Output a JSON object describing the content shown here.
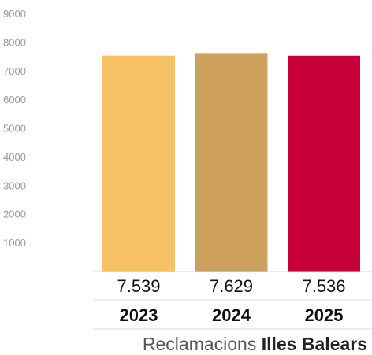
{
  "chart_data": {
    "type": "bar",
    "categories": [
      "2023",
      "2024",
      "2025"
    ],
    "values": [
      7539,
      7629,
      7536
    ],
    "value_labels": [
      "7.539",
      "7.629",
      "7.536"
    ],
    "y_ticks": [
      1000,
      2000,
      3000,
      4000,
      5000,
      6000,
      7000,
      8000,
      9000
    ],
    "ylim": [
      0,
      9000
    ],
    "colors": [
      "#f7c264",
      "#cda05c",
      "#c8003a"
    ],
    "grid": false,
    "caption": {
      "normal": "Reclamacions ",
      "bold": "Illes Balears"
    }
  }
}
